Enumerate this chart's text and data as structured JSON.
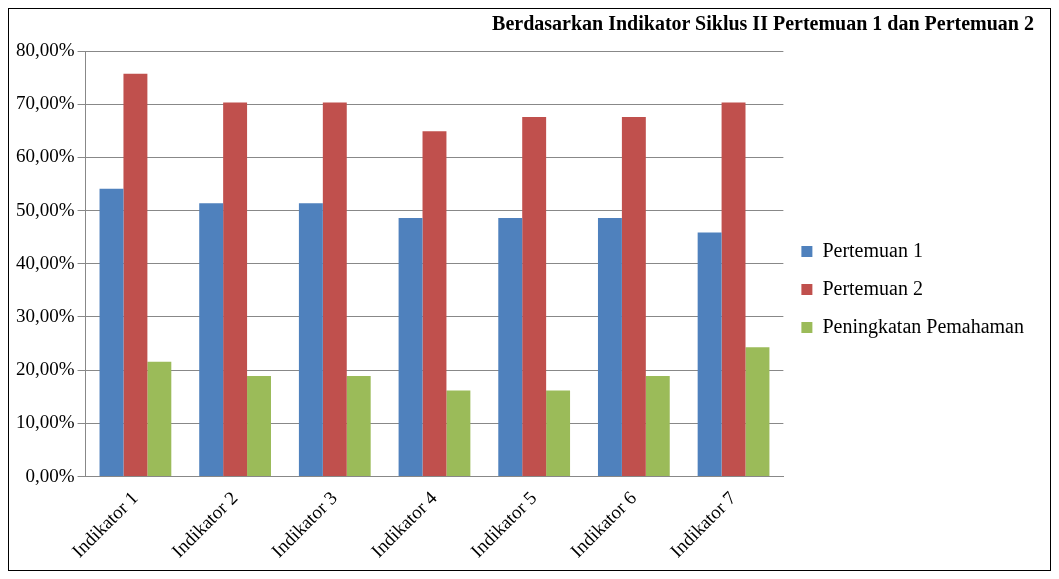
{
  "chart_data": {
    "type": "bar",
    "title": "Berdasarkan Indikator Siklus II Pertemuan 1 dan Pertemuan 2",
    "categories": [
      "Indikator 1",
      "Indikator 2",
      "Indikator 3",
      "Indikator 4",
      "Indikator 5",
      "Indikator 6",
      "Indikator 7"
    ],
    "series": [
      {
        "name": "Pertemuan 1",
        "color": "#4f81bd",
        "values": [
          54.1,
          51.4,
          51.4,
          48.6,
          48.6,
          48.6,
          45.9
        ]
      },
      {
        "name": "Pertemuan 2",
        "color": "#c0504d",
        "values": [
          75.7,
          70.3,
          70.3,
          64.9,
          67.6,
          67.6,
          70.3
        ]
      },
      {
        "name": "Peningkatan Pemahaman",
        "color": "#9bbb59",
        "values": [
          21.6,
          18.9,
          18.9,
          16.2,
          16.2,
          18.9,
          24.3
        ]
      }
    ],
    "ylim": [
      0,
      80
    ],
    "yticks": [
      {
        "value": 0,
        "label": "0,00%"
      },
      {
        "value": 10,
        "label": "10,00%"
      },
      {
        "value": 20,
        "label": "20,00%"
      },
      {
        "value": 30,
        "label": "30,00%"
      },
      {
        "value": 40,
        "label": "40,00%"
      },
      {
        "value": 50,
        "label": "50,00%"
      },
      {
        "value": 60,
        "label": "60,00%"
      },
      {
        "value": 70,
        "label": "70,00%"
      },
      {
        "value": 80,
        "label": "80,00%"
      }
    ],
    "grid": "y",
    "legend": "right"
  }
}
